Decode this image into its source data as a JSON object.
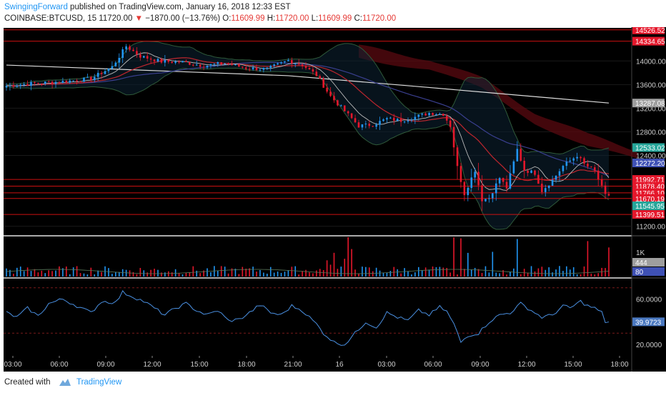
{
  "header": {
    "username": "SwingingForward",
    "publish_text": " published on TradingView.com, January 16, 2018 12:33 EST",
    "symbol": "COINBASE:BTCUSD, 15",
    "last": "11720.00",
    "change": "−1870.00 (−13.76%)",
    "o_label": "O:",
    "o": "11609.99",
    "h_label": "H:",
    "h": "11720.00",
    "l_label": "L:",
    "l": "11609.99",
    "c_label": "C:",
    "c": "11720.00"
  },
  "footer": {
    "created_with": "Created with",
    "brand": "TradingView"
  },
  "colors": {
    "background": "#000000",
    "up": "#2196f3",
    "down": "#e5172b",
    "hline": "#cc1111",
    "rsi": "#4a90e2",
    "grid": "#1a1a1a"
  },
  "chart_data": {
    "type": "candlestick",
    "x_ticks": [
      "03:00",
      "06:00",
      "09:00",
      "12:00",
      "15:00",
      "18:00",
      "21:00",
      "16",
      "03:00",
      "06:00",
      "09:00",
      "12:00",
      "15:00",
      "18:00"
    ],
    "y_ticks": [
      "14000.00",
      "13600.00",
      "13200.00",
      "12800.00",
      "12400.00",
      "11200.00"
    ],
    "ylim": [
      11050,
      14560
    ],
    "price_levels": [
      {
        "value": 14526.52,
        "label": "14526.52",
        "color": "#e5172b"
      },
      {
        "value": 14334.65,
        "label": "14334.65",
        "color": "#e5172b"
      },
      {
        "value": 11992.71,
        "label": "11992.71",
        "color": "#e5172b"
      },
      {
        "value": 11878.4,
        "label": "11878.40",
        "color": "#e5172b"
      },
      {
        "value": 11766.1,
        "label": "11766.10",
        "color": "#e5172b"
      },
      {
        "value": 11670.19,
        "label": "11670.19",
        "color": "#e5172b"
      },
      {
        "value": 11399.51,
        "label": "11399.51",
        "color": "#e5172b"
      }
    ],
    "price_badges": [
      {
        "value": 13287.08,
        "label": "13287.08",
        "color": "#9e9e9e"
      },
      {
        "value": 12533.02,
        "label": "12533.02",
        "color": "#26a69a"
      },
      {
        "value": 12272.2,
        "label": "12272.20",
        "color": "#3f51b5"
      },
      {
        "value": 11545.95,
        "label": "11545.95",
        "color": "#26a69a"
      }
    ],
    "close_anchors": [
      [
        0,
        13580
      ],
      [
        8,
        13620
      ],
      [
        16,
        13650
      ],
      [
        24,
        13700
      ],
      [
        30,
        13900
      ],
      [
        34,
        14250
      ],
      [
        38,
        14080
      ],
      [
        44,
        13990
      ],
      [
        50,
        13980
      ],
      [
        56,
        13920
      ],
      [
        62,
        13960
      ],
      [
        68,
        13880
      ],
      [
        74,
        13860
      ],
      [
        80,
        14010
      ],
      [
        84,
        13930
      ],
      [
        88,
        13760
      ],
      [
        92,
        13400
      ],
      [
        96,
        13150
      ],
      [
        100,
        12900
      ],
      [
        104,
        12920
      ],
      [
        108,
        13020
      ],
      [
        112,
        12990
      ],
      [
        116,
        13050
      ],
      [
        120,
        13120
      ],
      [
        124,
        13100
      ],
      [
        126,
        12900
      ],
      [
        128,
        12200
      ],
      [
        130,
        11750
      ],
      [
        133,
        12150
      ],
      [
        135,
        11650
      ],
      [
        137,
        11680
      ],
      [
        140,
        12020
      ],
      [
        142,
        11850
      ],
      [
        145,
        12500
      ],
      [
        147,
        12150
      ],
      [
        150,
        12100
      ],
      [
        152,
        11800
      ],
      [
        155,
        11980
      ],
      [
        158,
        12220
      ],
      [
        162,
        12400
      ],
      [
        164,
        12250
      ],
      [
        167,
        12130
      ],
      [
        170,
        11720
      ],
      [
        171,
        11680
      ]
    ],
    "volume": {
      "y_ticks": [
        "1K"
      ],
      "badges": [
        {
          "label": "444",
          "color": "#9e9e9e"
        },
        {
          "label": "80",
          "color": "#3f51b5"
        }
      ]
    },
    "rsi": {
      "y_ticks": [
        "60.0000",
        "20.0000"
      ],
      "current": "39.9723",
      "levels": [
        70,
        30
      ],
      "ylim": [
        10,
        78
      ],
      "anchors": [
        [
          0,
          48
        ],
        [
          3,
          44
        ],
        [
          6,
          52
        ],
        [
          9,
          45
        ],
        [
          12,
          56
        ],
        [
          16,
          60
        ],
        [
          20,
          54
        ],
        [
          24,
          48
        ],
        [
          27,
          58
        ],
        [
          31,
          57
        ],
        [
          33,
          66
        ],
        [
          36,
          62
        ],
        [
          39,
          58
        ],
        [
          42,
          52
        ],
        [
          45,
          46
        ],
        [
          48,
          52
        ],
        [
          51,
          56
        ],
        [
          54,
          50
        ],
        [
          57,
          46
        ],
        [
          60,
          50
        ],
        [
          63,
          41
        ],
        [
          66,
          42
        ],
        [
          69,
          48
        ],
        [
          72,
          55
        ],
        [
          75,
          48
        ],
        [
          78,
          46
        ],
        [
          81,
          54
        ],
        [
          84,
          50
        ],
        [
          86,
          44
        ],
        [
          88,
          38
        ],
        [
          90,
          30
        ],
        [
          93,
          22
        ],
        [
          96,
          20
        ],
        [
          99,
          30
        ],
        [
          102,
          40
        ],
        [
          105,
          35
        ],
        [
          108,
          48
        ],
        [
          111,
          44
        ],
        [
          114,
          41
        ],
        [
          117,
          50
        ],
        [
          120,
          46
        ],
        [
          123,
          53
        ],
        [
          125,
          49
        ],
        [
          127,
          38
        ],
        [
          129,
          22
        ],
        [
          131,
          28
        ],
        [
          134,
          30
        ],
        [
          137,
          40
        ],
        [
          140,
          46
        ],
        [
          143,
          48
        ],
        [
          146,
          56
        ],
        [
          149,
          50
        ],
        [
          152,
          44
        ],
        [
          155,
          46
        ],
        [
          158,
          54
        ],
        [
          160,
          52
        ],
        [
          163,
          58
        ],
        [
          165,
          54
        ],
        [
          167,
          52
        ],
        [
          169,
          48
        ],
        [
          170,
          40
        ]
      ]
    }
  }
}
